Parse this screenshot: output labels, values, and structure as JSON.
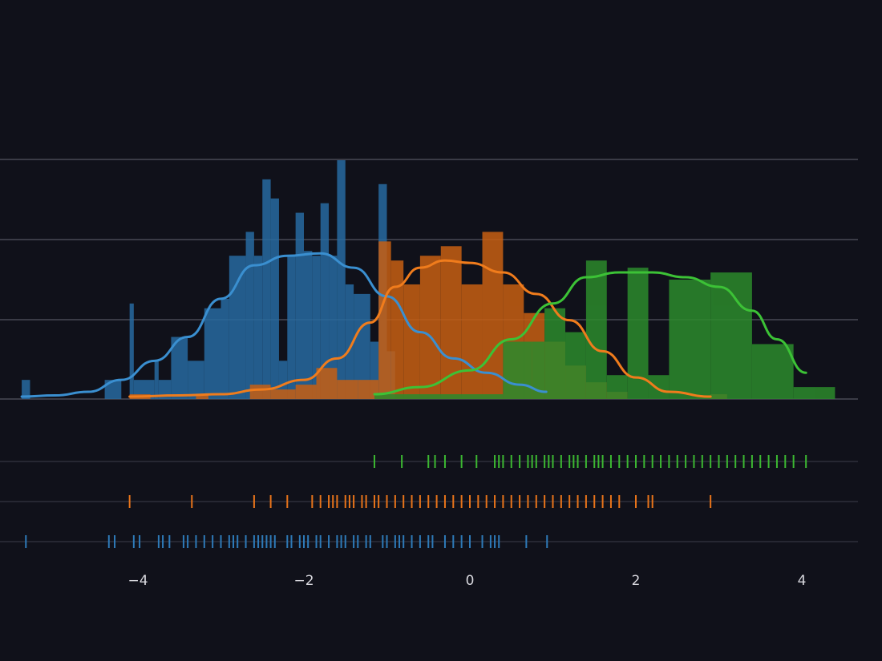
{
  "chart_data": {
    "type": "histogram+kde+rug",
    "title": "",
    "xlabel": "",
    "ylabel": "",
    "xlim": [
      -5.5,
      4.7
    ],
    "x_ticks": [
      -4,
      -2,
      0,
      2,
      4
    ],
    "x_tick_labels": [
      "−4",
      "−2",
      "0",
      "2",
      "4"
    ],
    "y_gridlines": 4,
    "y_ticks_visible": false,
    "legend": "none",
    "background": "#10111a",
    "series": [
      {
        "name": "series-blue",
        "color": "#2e7ab8",
        "fill": "#276aa0",
        "line_color": "#3a8fd0",
        "bins": [
          [
            -5.4,
            -5.3,
            0.08
          ],
          [
            -4.4,
            -4.2,
            0.08
          ],
          [
            -4.1,
            -4.05,
            0.4
          ],
          [
            -4.05,
            -3.8,
            0.08
          ],
          [
            -3.8,
            -3.75,
            0.16
          ],
          [
            -3.75,
            -3.6,
            0.08
          ],
          [
            -3.6,
            -3.4,
            0.26
          ],
          [
            -3.4,
            -3.2,
            0.16
          ],
          [
            -3.2,
            -3.0,
            0.38
          ],
          [
            -3.0,
            -2.9,
            0.42
          ],
          [
            -2.9,
            -2.7,
            0.6
          ],
          [
            -2.7,
            -2.6,
            0.7
          ],
          [
            -2.6,
            -2.5,
            0.6
          ],
          [
            -2.5,
            -2.4,
            0.92
          ],
          [
            -2.4,
            -2.3,
            0.84
          ],
          [
            -2.3,
            -2.2,
            0.16
          ],
          [
            -2.2,
            -2.1,
            0.6
          ],
          [
            -2.1,
            -2.0,
            0.78
          ],
          [
            -2.0,
            -1.9,
            0.62
          ],
          [
            -1.9,
            -1.8,
            0.6
          ],
          [
            -1.8,
            -1.7,
            0.82
          ],
          [
            -1.7,
            -1.6,
            0.6
          ],
          [
            -1.6,
            -1.5,
            1.0
          ],
          [
            -1.5,
            -1.4,
            0.48
          ],
          [
            -1.4,
            -1.2,
            0.44
          ],
          [
            -1.2,
            -1.1,
            0.24
          ],
          [
            -1.1,
            -1.0,
            0.9
          ],
          [
            -1.0,
            -0.9,
            0.2
          ]
        ],
        "kde": [
          [
            -5.4,
            0.01
          ],
          [
            -5.0,
            0.015
          ],
          [
            -4.6,
            0.03
          ],
          [
            -4.2,
            0.08
          ],
          [
            -3.8,
            0.16
          ],
          [
            -3.4,
            0.26
          ],
          [
            -3.0,
            0.42
          ],
          [
            -2.6,
            0.56
          ],
          [
            -2.2,
            0.6
          ],
          [
            -1.8,
            0.61
          ],
          [
            -1.4,
            0.55
          ],
          [
            -1.0,
            0.43
          ],
          [
            -0.6,
            0.28
          ],
          [
            -0.2,
            0.17
          ],
          [
            0.2,
            0.11
          ],
          [
            0.6,
            0.06
          ],
          [
            0.92,
            0.03
          ]
        ],
        "rug": [
          -5.35,
          -4.35,
          -4.28,
          -4.05,
          -3.98,
          -3.75,
          -3.7,
          -3.62,
          -3.45,
          -3.4,
          -3.3,
          -3.2,
          -3.1,
          -3.0,
          -2.9,
          -2.85,
          -2.8,
          -2.7,
          -2.6,
          -2.55,
          -2.5,
          -2.45,
          -2.4,
          -2.35,
          -2.2,
          -2.15,
          -2.05,
          -2.0,
          -1.95,
          -1.85,
          -1.8,
          -1.7,
          -1.6,
          -1.55,
          -1.5,
          -1.4,
          -1.35,
          -1.25,
          -1.2,
          -1.05,
          -1.0,
          -0.9,
          -0.85,
          -0.8,
          -0.7,
          -0.6,
          -0.5,
          -0.45,
          -0.3,
          -0.2,
          -0.1,
          0.0,
          0.15,
          0.25,
          0.3,
          0.35,
          0.68,
          0.93
        ]
      },
      {
        "name": "series-orange",
        "color": "#e8741a",
        "fill": "#c75f12",
        "line_color": "#f07c1c",
        "bins": [
          [
            -4.1,
            -3.85,
            0.02
          ],
          [
            -3.3,
            -3.15,
            0.02
          ],
          [
            -2.65,
            -2.4,
            0.06
          ],
          [
            -2.4,
            -2.1,
            0.04
          ],
          [
            -2.1,
            -1.85,
            0.06
          ],
          [
            -1.85,
            -1.6,
            0.13
          ],
          [
            -1.6,
            -1.35,
            0.08
          ],
          [
            -1.35,
            -1.1,
            0.08
          ],
          [
            -1.1,
            -0.95,
            0.66
          ],
          [
            -0.95,
            -0.8,
            0.58
          ],
          [
            -0.8,
            -0.6,
            0.48
          ],
          [
            -0.6,
            -0.35,
            0.6
          ],
          [
            -0.35,
            -0.1,
            0.64
          ],
          [
            -0.1,
            0.15,
            0.48
          ],
          [
            0.15,
            0.4,
            0.7
          ],
          [
            0.4,
            0.65,
            0.48
          ],
          [
            0.65,
            0.9,
            0.36
          ],
          [
            0.9,
            1.15,
            0.24
          ],
          [
            1.15,
            1.4,
            0.14
          ],
          [
            1.4,
            1.65,
            0.07
          ],
          [
            1.65,
            1.9,
            0.03
          ],
          [
            2.9,
            3.1,
            0.02
          ]
        ],
        "kde": [
          [
            -4.1,
            0.01
          ],
          [
            -3.5,
            0.015
          ],
          [
            -3.0,
            0.02
          ],
          [
            -2.5,
            0.04
          ],
          [
            -2.0,
            0.08
          ],
          [
            -1.6,
            0.17
          ],
          [
            -1.2,
            0.32
          ],
          [
            -0.9,
            0.47
          ],
          [
            -0.6,
            0.55
          ],
          [
            -0.3,
            0.58
          ],
          [
            0.0,
            0.57
          ],
          [
            0.4,
            0.53
          ],
          [
            0.8,
            0.44
          ],
          [
            1.2,
            0.33
          ],
          [
            1.6,
            0.2
          ],
          [
            2.0,
            0.09
          ],
          [
            2.4,
            0.03
          ],
          [
            2.9,
            0.01
          ]
        ],
        "rug": [
          -4.1,
          -3.35,
          -2.6,
          -2.4,
          -2.2,
          -1.9,
          -1.8,
          -1.7,
          -1.65,
          -1.6,
          -1.5,
          -1.45,
          -1.4,
          -1.3,
          -1.25,
          -1.15,
          -1.1,
          -1.0,
          -0.9,
          -0.8,
          -0.7,
          -0.6,
          -0.5,
          -0.4,
          -0.3,
          -0.2,
          -0.1,
          0.0,
          0.1,
          0.2,
          0.3,
          0.4,
          0.5,
          0.6,
          0.7,
          0.8,
          0.9,
          1.0,
          1.1,
          1.2,
          1.3,
          1.4,
          1.5,
          1.6,
          1.7,
          1.8,
          2.0,
          2.15,
          2.2,
          2.9
        ]
      },
      {
        "name": "series-green",
        "color": "#3cb832",
        "fill": "#2c8a2c",
        "line_color": "#3cc236",
        "bins": [
          [
            -1.15,
            0.4,
            0.02
          ],
          [
            0.4,
            0.75,
            0.24
          ],
          [
            0.75,
            0.9,
            0.24
          ],
          [
            0.9,
            1.15,
            0.38
          ],
          [
            1.15,
            1.4,
            0.28
          ],
          [
            1.4,
            1.65,
            0.58
          ],
          [
            1.65,
            1.9,
            0.1
          ],
          [
            1.9,
            2.15,
            0.55
          ],
          [
            2.15,
            2.4,
            0.1
          ],
          [
            2.4,
            2.9,
            0.5
          ],
          [
            2.9,
            3.4,
            0.53
          ],
          [
            3.4,
            3.9,
            0.23
          ],
          [
            3.9,
            4.4,
            0.05
          ]
        ],
        "kde": [
          [
            -1.15,
            0.02
          ],
          [
            -0.6,
            0.05
          ],
          [
            0.0,
            0.12
          ],
          [
            0.5,
            0.25
          ],
          [
            1.0,
            0.4
          ],
          [
            1.4,
            0.51
          ],
          [
            1.8,
            0.53
          ],
          [
            2.2,
            0.53
          ],
          [
            2.6,
            0.51
          ],
          [
            3.0,
            0.47
          ],
          [
            3.4,
            0.37
          ],
          [
            3.7,
            0.25
          ],
          [
            4.05,
            0.11
          ]
        ],
        "rug": [
          -1.15,
          -0.82,
          -0.5,
          -0.42,
          -0.3,
          -0.1,
          0.08,
          0.3,
          0.35,
          0.4,
          0.5,
          0.6,
          0.7,
          0.75,
          0.8,
          0.9,
          0.95,
          1.0,
          1.1,
          1.2,
          1.25,
          1.3,
          1.4,
          1.5,
          1.55,
          1.6,
          1.7,
          1.8,
          1.9,
          2.0,
          2.1,
          2.2,
          2.3,
          2.4,
          2.5,
          2.6,
          2.7,
          2.8,
          2.9,
          3.0,
          3.1,
          3.2,
          3.3,
          3.4,
          3.5,
          3.6,
          3.7,
          3.8,
          3.9,
          4.05
        ]
      }
    ]
  }
}
